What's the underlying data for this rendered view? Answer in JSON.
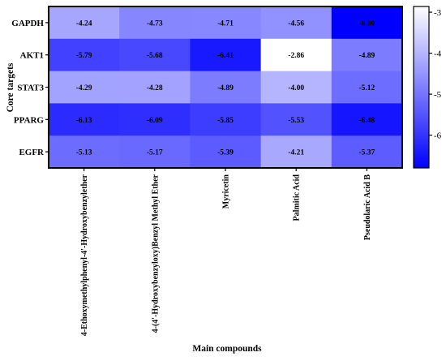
{
  "chart_data": {
    "type": "heatmap",
    "rows": [
      "GAPDH",
      "AKT1",
      "STAT3",
      "PPARG",
      "EGFR"
    ],
    "columns": [
      "4-Ethoxymethylphenyl-4'-Hydroxybenzylether",
      "4-(4'-Hydroxybenzyloxy)Benzyl Methyl Ether",
      "Myricetin",
      "Palmitic Acid",
      "Pseudolaric Acid B"
    ],
    "values": [
      [
        -4.24,
        -4.73,
        -4.71,
        -4.56,
        -6.8
      ],
      [
        -5.79,
        -5.68,
        -6.41,
        -2.86,
        -4.89
      ],
      [
        -4.29,
        -4.28,
        -4.89,
        -4.0,
        -5.12
      ],
      [
        -6.13,
        -6.09,
        -5.85,
        -5.53,
        -6.48
      ],
      [
        -5.13,
        -5.17,
        -5.39,
        -4.21,
        -5.37
      ]
    ],
    "value_labels": [
      [
        "-4.24",
        "-4.73",
        "-4.71",
        "-4.56",
        "-6.80"
      ],
      [
        "-5.79",
        "-5.68",
        "-6.41",
        "-2.86",
        "-4.89"
      ],
      [
        "-4.29",
        "-4.28",
        "-4.89",
        "-4.00",
        "-5.12"
      ],
      [
        "-6.13",
        "-6.09",
        "-5.85",
        "-5.53",
        "-6.48"
      ],
      [
        "-5.13",
        "-5.17",
        "-5.39",
        "-4.21",
        "-5.37"
      ]
    ],
    "xlabel": "Main compounds",
    "ylabel": "Core targets",
    "colorbar": {
      "min": -6.8,
      "max": -2.86,
      "ticks": [
        -3,
        -4,
        -5,
        -6
      ],
      "tick_labels": [
        "-3",
        "-4",
        "-5",
        "-6"
      ],
      "color_low": "#0000ff",
      "color_high": "#ffffff"
    }
  }
}
